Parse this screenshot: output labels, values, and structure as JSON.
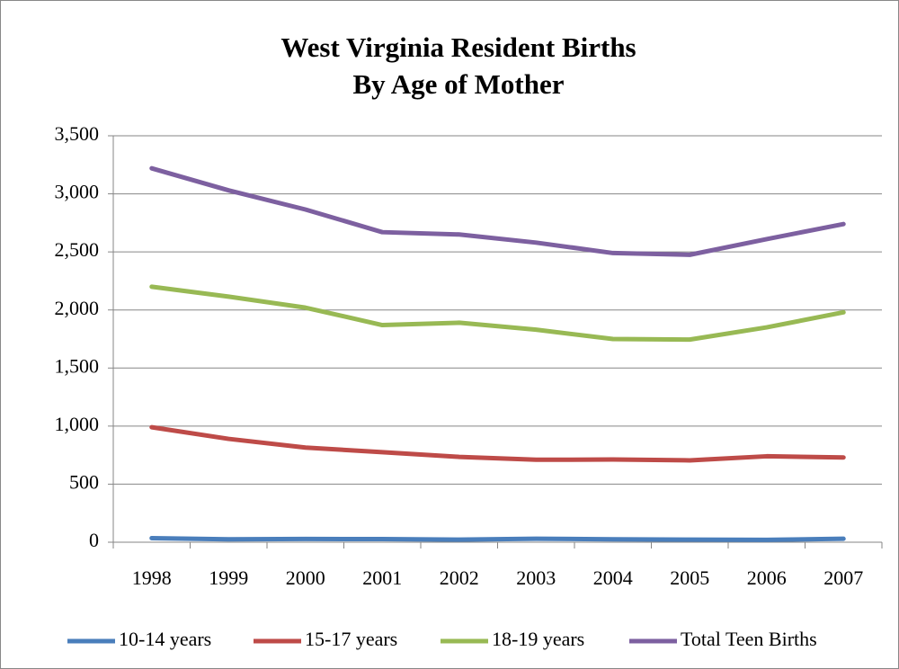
{
  "chart_data": {
    "type": "line",
    "title": "West Virginia Resident Births",
    "subtitle": "By  Age of Mother",
    "categories": [
      "1998",
      "1999",
      "2000",
      "2001",
      "2002",
      "2003",
      "2004",
      "2005",
      "2006",
      "2007"
    ],
    "series": [
      {
        "name": "10-14 years",
        "color": "#4a7ebb",
        "values": [
          35,
          25,
          28,
          27,
          22,
          30,
          25,
          22,
          20,
          30
        ]
      },
      {
        "name": "15-17 years",
        "color": "#be4b48",
        "values": [
          990,
          890,
          815,
          775,
          735,
          710,
          712,
          705,
          740,
          730
        ]
      },
      {
        "name": "18-19 years",
        "color": "#98b954",
        "values": [
          2200,
          2115,
          2020,
          1870,
          1890,
          1830,
          1750,
          1745,
          1850,
          1980
        ]
      },
      {
        "name": "Total Teen Births",
        "color": "#7d60a0",
        "values": [
          3220,
          3030,
          2865,
          2670,
          2650,
          2580,
          2490,
          2475,
          2610,
          2740
        ]
      }
    ],
    "ylim": [
      0,
      3500
    ],
    "yticks": [
      0,
      500,
      {
        "value": 1000,
        "label": "1,000"
      },
      {
        "value": 1500,
        "label": "1,500"
      },
      {
        "value": 2000,
        "label": "2,000"
      },
      {
        "value": 2500,
        "label": "2,500"
      },
      {
        "value": 3000,
        "label": "3,000"
      },
      {
        "value": 3500,
        "label": "3,500"
      }
    ],
    "grid": true,
    "legend": "bottom"
  }
}
